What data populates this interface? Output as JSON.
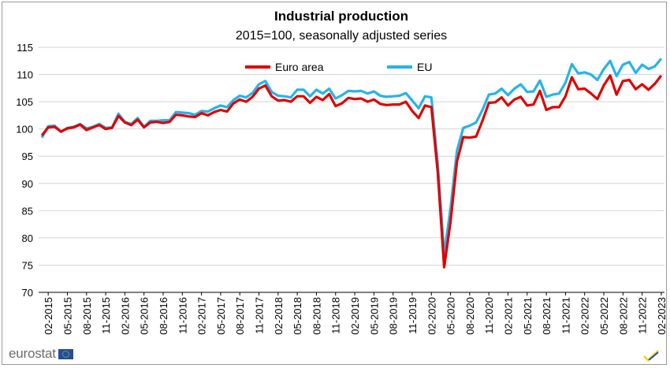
{
  "chart_data": {
    "type": "line",
    "title": "Industrial production",
    "subtitle": "2015=100, seasonally adjusted series",
    "xlabel": "",
    "ylabel": "",
    "ylim": [
      70,
      115
    ],
    "y_ticks": [
      70,
      75,
      80,
      85,
      90,
      95,
      100,
      105,
      110,
      115
    ],
    "grid": "horizontal",
    "legend_position": "top-center",
    "x_tick_labels": [
      "02-2015",
      "05-2015",
      "08-2015",
      "11-2015",
      "02-2016",
      "05-2016",
      "08-2016",
      "11-2016",
      "02-2017",
      "05-2017",
      "08-2017",
      "11-2017",
      "02-2018",
      "05-2018",
      "08-2018",
      "11-2018",
      "02-2019",
      "05-2019",
      "08-2019",
      "11-2019",
      "02-2020",
      "05-2020",
      "08-2020",
      "11-2020",
      "02-2021",
      "05-2021",
      "08-2021",
      "11-2021",
      "02-2022",
      "05-2022",
      "08-2022",
      "11-2022",
      "02-2023"
    ],
    "x_start": "01-2015",
    "x_end": "02-2023",
    "series": [
      {
        "name": "Euro area",
        "color": "#e00000",
        "values": [
          98.8,
          100.3,
          100.4,
          99.5,
          100.1,
          100.3,
          100.8,
          99.8,
          100.3,
          100.7,
          100.0,
          100.2,
          102.4,
          101.2,
          100.7,
          101.7,
          100.3,
          101.2,
          101.3,
          101.1,
          101.3,
          102.6,
          102.5,
          102.3,
          102.2,
          102.9,
          102.5,
          103.1,
          103.5,
          103.2,
          104.7,
          105.4,
          105.0,
          105.9,
          107.4,
          108.0,
          106.0,
          105.2,
          105.3,
          105.0,
          106.0,
          106.0,
          104.8,
          105.9,
          105.3,
          106.4,
          104.2,
          104.7,
          105.7,
          105.5,
          105.6,
          105.0,
          105.4,
          104.6,
          104.4,
          104.5,
          104.5,
          105.0,
          103.3,
          102.0,
          104.3,
          104.0,
          92.0,
          74.6,
          83.0,
          94.0,
          98.5,
          98.4,
          98.6,
          101.5,
          104.8,
          104.9,
          105.8,
          104.3,
          105.4,
          105.9,
          104.3,
          104.5,
          107.0,
          103.5,
          104.0,
          104.0,
          106.0,
          109.5,
          107.3,
          107.4,
          106.5,
          105.5,
          108.0,
          109.8,
          106.3,
          108.8,
          109.0,
          107.3,
          108.2,
          107.2,
          108.3,
          109.8
        ]
      },
      {
        "name": "EU",
        "color": "#25b4e8",
        "values": [
          98.4,
          100.5,
          100.6,
          99.5,
          100.2,
          100.4,
          100.9,
          100.1,
          100.4,
          100.9,
          100.2,
          100.3,
          102.8,
          101.3,
          100.9,
          102.0,
          100.4,
          101.5,
          101.5,
          101.6,
          101.6,
          103.1,
          103.0,
          102.9,
          102.6,
          103.3,
          103.2,
          103.8,
          104.3,
          104.0,
          105.3,
          106.1,
          105.8,
          106.6,
          108.2,
          108.8,
          106.8,
          106.1,
          106.0,
          105.8,
          107.2,
          107.2,
          106.0,
          107.2,
          106.5,
          107.4,
          105.6,
          106.2,
          107.0,
          106.9,
          107.0,
          106.5,
          106.9,
          106.1,
          105.9,
          106.0,
          106.1,
          106.6,
          105.2,
          103.8,
          106.0,
          105.8,
          93.5,
          77.0,
          85.5,
          96.0,
          100.2,
          100.6,
          101.2,
          103.5,
          106.3,
          106.5,
          107.4,
          106.2,
          107.4,
          108.2,
          106.8,
          106.9,
          108.9,
          105.9,
          106.3,
          106.5,
          108.5,
          111.9,
          110.2,
          110.4,
          110.0,
          109.0,
          111.0,
          112.5,
          109.7,
          111.8,
          112.3,
          110.3,
          111.8,
          111.0,
          111.5,
          112.9
        ]
      }
    ]
  },
  "branding": {
    "logo_text": "eurostat",
    "flag_color": "#1f4fa0",
    "check_colors": [
      "#ffd200",
      "#1f4fa0"
    ]
  }
}
